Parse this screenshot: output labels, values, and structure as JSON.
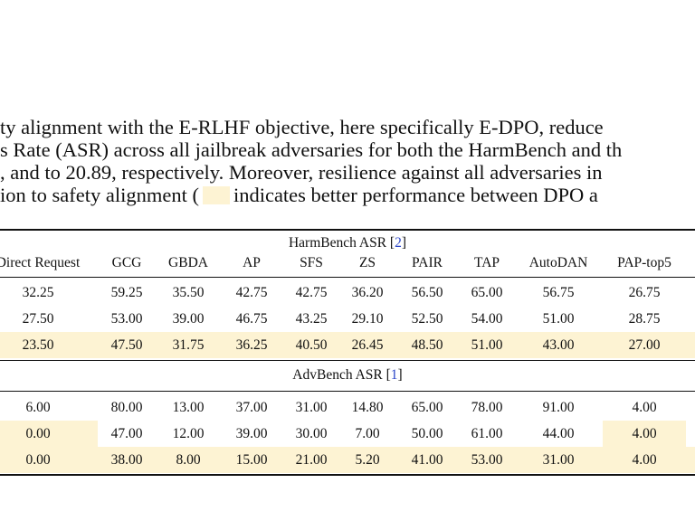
{
  "caption": {
    "lines": [
      "ty alignment with the E-RLHF objective, here specifically E-DPO, reduce",
      "s Rate (ASR) across all jailbreak adversaries for both the HarmBench and th",
      ", and to 20.89, respectively. Moreover, resilience against all adversaries in"
    ],
    "last_line_before": "ion to safety alignment (",
    "last_line_after": "indicates better performance between DPO a"
  },
  "colors": {
    "highlight": "#fdf3d3",
    "link": "#2b45c9"
  },
  "table": {
    "columns": [
      "Direct Request",
      "GCG",
      "GBDA",
      "AP",
      "SFS",
      "ZS",
      "PAIR",
      "TAP",
      "AutoDAN",
      "PAP-top5"
    ],
    "harmbench": {
      "title": "HarmBench ASR [",
      "ref": "2",
      "title_end": "]",
      "rows": [
        [
          "32.25",
          "59.25",
          "35.50",
          "42.75",
          "42.75",
          "36.20",
          "56.50",
          "65.00",
          "56.75",
          "26.75"
        ],
        [
          "27.50",
          "53.00",
          "39.00",
          "46.75",
          "43.25",
          "29.10",
          "52.50",
          "54.00",
          "51.00",
          "28.75"
        ],
        [
          "23.50",
          "47.50",
          "31.75",
          "36.25",
          "40.50",
          "26.45",
          "48.50",
          "51.00",
          "43.00",
          "27.00"
        ]
      ]
    },
    "advbench": {
      "title": "AdvBench ASR [",
      "ref": "1",
      "title_end": "]",
      "rows": [
        [
          "6.00",
          "80.00",
          "13.00",
          "37.00",
          "31.00",
          "14.80",
          "65.00",
          "78.00",
          "91.00",
          "4.00"
        ],
        [
          "0.00",
          "47.00",
          "12.00",
          "39.00",
          "30.00",
          "7.00",
          "50.00",
          "61.00",
          "44.00",
          "4.00"
        ],
        [
          "0.00",
          "38.00",
          "8.00",
          "15.00",
          "21.00",
          "5.20",
          "41.00",
          "53.00",
          "31.00",
          "4.00"
        ]
      ]
    }
  }
}
